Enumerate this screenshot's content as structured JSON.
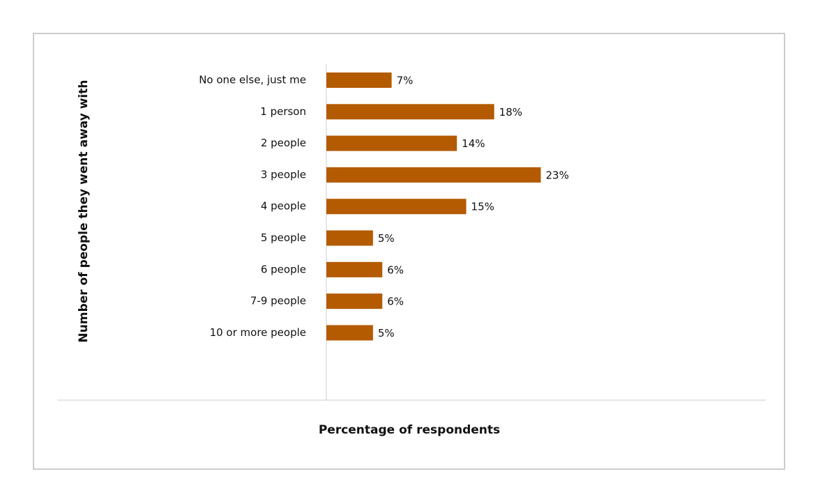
{
  "chart_data": {
    "type": "bar",
    "orientation": "horizontal",
    "x_label": "Percentage of respondents",
    "y_label": "Number of people they went away with",
    "categories": [
      "No one else, just me",
      "1 person",
      "2 people",
      "3 people",
      "4 people",
      "5 people",
      "6 people",
      "7-9 people",
      "10 or more people"
    ],
    "values": [
      7,
      18,
      14,
      23,
      15,
      5,
      6,
      6,
      5
    ],
    "value_labels": [
      "7%",
      "18%",
      "14%",
      "23%",
      "15%",
      "5%",
      "6%",
      "6%",
      "5%"
    ],
    "color": "#b45a00"
  }
}
